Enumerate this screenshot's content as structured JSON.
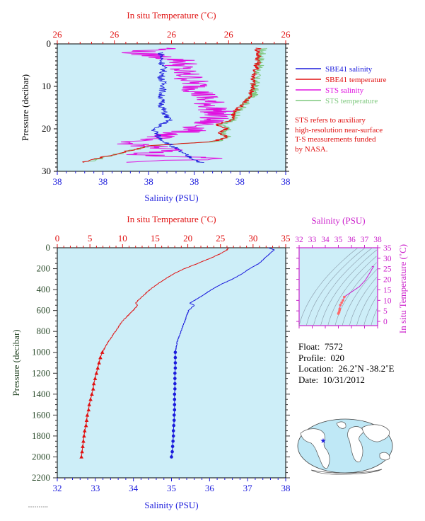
{
  "colors": {
    "plot_bg": "#cdeef8",
    "salinity": "#1a1adc",
    "temperature": "#e01010",
    "sts_salinity": "#e010e0",
    "sts_temperature": "#7ec87e",
    "ts_axis": "#cc22cc",
    "axis_dark": "#333333",
    "green_label": "#2a4a2a"
  },
  "top_panel": {
    "top_axis_title": "In situ Temperature (˚C)",
    "top_ticks": [
      "26",
      "26",
      "26",
      "26",
      "26"
    ],
    "bottom_axis_title": "Salinity (PSU)",
    "bottom_ticks": [
      "38",
      "38",
      "38",
      "38",
      "38",
      "38"
    ],
    "left_axis_title": "Pressure (decibar)",
    "left_ticks": [
      "0",
      "10",
      "20",
      "30"
    ],
    "legend": [
      {
        "label": "SBE41 salinity",
        "color": "#1a1adc"
      },
      {
        "label": "SBE41 temperature",
        "color": "#e01010"
      },
      {
        "label": "STS salinity",
        "color": "#e010e0"
      },
      {
        "label": "STS temperature",
        "color": "#7ec87e"
      }
    ],
    "note_lines": [
      "STS refers to auxiliary",
      "high-resolution near-surface",
      "T-S measurements funded",
      "by NASA."
    ]
  },
  "main_panel": {
    "top_axis_title": "In situ Temperature (˚C)",
    "top_ticks": [
      "0",
      "5",
      "10",
      "15",
      "20",
      "25",
      "30",
      "35"
    ],
    "bottom_axis_title": "Salinity (PSU)",
    "bottom_ticks": [
      "32",
      "33",
      "34",
      "35",
      "36",
      "37",
      "38"
    ],
    "left_axis_title": "Pressure (decibar)",
    "left_ticks": [
      "0",
      "200",
      "400",
      "600",
      "800",
      "1000",
      "1200",
      "1400",
      "1600",
      "1800",
      "2000",
      "2200"
    ]
  },
  "ts_panel": {
    "top_axis_title": "Salinity (PSU)",
    "top_ticks": [
      "32",
      "33",
      "34",
      "35",
      "36",
      "37",
      "38"
    ],
    "right_axis_title": "In situ Temperature (˚C)",
    "right_ticks": [
      "0",
      "5",
      "10",
      "15",
      "20",
      "25",
      "30",
      "35"
    ]
  },
  "float_info": {
    "float_label": "Float:",
    "float_value": "7572",
    "profile_label": "Profile:",
    "profile_value": "020",
    "location_label": "Location:",
    "location_value": "26.2˚N  -38.2˚E",
    "date_label": "Date:",
    "date_value": "10/31/2012"
  },
  "chart_data": [
    {
      "type": "line",
      "panel": "near-surface (top)",
      "xlabel": "Salinity (PSU)",
      "x2label": "In situ Temperature (˚C)",
      "ylabel": "Pressure (decibar)",
      "xlim": [
        37.5,
        38.4
      ],
      "x2lim": [
        25.6,
        26.6
      ],
      "ylim": [
        30,
        0
      ],
      "series": [
        {
          "name": "SBE41 salinity",
          "axis": "salinity",
          "pressure": [
            2,
            4,
            6,
            8,
            10,
            12,
            14,
            16,
            18,
            20,
            22,
            24,
            26,
            28
          ],
          "values": [
            37.91,
            37.91,
            37.92,
            37.91,
            37.92,
            37.91,
            37.91,
            37.92,
            37.94,
            37.88,
            37.9,
            37.95,
            38.0,
            38.07
          ]
        },
        {
          "name": "SBE41 temperature",
          "axis": "temperature",
          "pressure": [
            1,
            4,
            8,
            12,
            16,
            18,
            19,
            20,
            21,
            22,
            23,
            24,
            26,
            28
          ],
          "values": [
            26.48,
            26.48,
            26.46,
            26.45,
            26.38,
            26.36,
            26.3,
            26.34,
            26.31,
            26.34,
            26.28,
            26.0,
            25.85,
            25.7
          ]
        },
        {
          "name": "STS salinity",
          "axis": "salinity",
          "pressure": [
            1,
            2,
            4,
            6,
            8,
            10,
            12,
            14,
            16,
            18,
            20,
            22,
            23,
            24,
            25,
            26,
            27,
            28
          ],
          "values": [
            37.95,
            37.8,
            38.0,
            37.98,
            38.02,
            38.05,
            38.07,
            38.1,
            38.13,
            38.1,
            38.05,
            37.9,
            37.75,
            37.85,
            37.95,
            37.8,
            38.15,
            37.75
          ]
        },
        {
          "name": "STS temperature",
          "axis": "temperature",
          "pressure": [
            1,
            4,
            8,
            12,
            16,
            18,
            19,
            20,
            21,
            22,
            23,
            24,
            26,
            28
          ],
          "values": [
            26.5,
            26.49,
            26.47,
            26.46,
            26.39,
            26.37,
            26.31,
            26.35,
            26.32,
            26.35,
            26.29,
            26.01,
            25.86,
            25.71
          ]
        }
      ],
      "legend": "right"
    },
    {
      "type": "line",
      "panel": "full profile",
      "xlabel": "Salinity (PSU)",
      "x2label": "In situ Temperature (˚C)",
      "ylabel": "Pressure (decibar)",
      "xlim": [
        32,
        38
      ],
      "x2lim": [
        0,
        35
      ],
      "ylim": [
        2200,
        0
      ],
      "series": [
        {
          "name": "salinity",
          "axis": "salinity",
          "marker": "circle",
          "pressure": [
            0,
            20,
            50,
            100,
            150,
            200,
            250,
            300,
            350,
            400,
            450,
            500,
            530,
            550,
            600,
            650,
            700,
            800,
            900,
            1000,
            1050,
            1100,
            1150,
            1200,
            1250,
            1300,
            1350,
            1400,
            1450,
            1500,
            1550,
            1600,
            1650,
            1700,
            1750,
            1800,
            1850,
            1900,
            1950,
            2000
          ],
          "values": [
            37.55,
            37.7,
            37.6,
            37.45,
            37.3,
            37.05,
            36.85,
            36.6,
            36.3,
            36.05,
            35.85,
            35.62,
            35.48,
            35.6,
            35.45,
            35.4,
            35.35,
            35.25,
            35.15,
            35.1,
            35.1,
            35.1,
            35.1,
            35.09,
            35.09,
            35.09,
            35.09,
            35.08,
            35.08,
            35.08,
            35.08,
            35.07,
            35.07,
            35.06,
            35.05,
            35.05,
            35.04,
            35.03,
            35.02,
            35.0
          ]
        },
        {
          "name": "temperature",
          "axis": "temperature",
          "marker": "triangle",
          "pressure": [
            0,
            20,
            50,
            100,
            150,
            200,
            250,
            300,
            350,
            400,
            450,
            500,
            530,
            550,
            600,
            650,
            700,
            800,
            900,
            1000,
            1050,
            1100,
            1150,
            1200,
            1250,
            1300,
            1350,
            1400,
            1450,
            1500,
            1550,
            1600,
            1650,
            1700,
            1750,
            1800,
            1850,
            1900,
            1950,
            2000
          ],
          "values": [
            26.2,
            26.0,
            25.2,
            23.5,
            21.5,
            19.5,
            17.8,
            16.5,
            15.3,
            14.2,
            13.3,
            12.4,
            12.0,
            12.3,
            11.6,
            10.8,
            10.0,
            8.9,
            7.8,
            6.9,
            6.6,
            6.4,
            6.2,
            6.0,
            5.8,
            5.6,
            5.5,
            5.3,
            5.1,
            4.9,
            4.8,
            4.6,
            4.5,
            4.4,
            4.2,
            4.1,
            4.0,
            3.9,
            3.8,
            3.7
          ]
        }
      ]
    },
    {
      "type": "line",
      "panel": "T-S diagram",
      "xlabel": "Salinity (PSU)",
      "ylabel": "In situ Temperature (˚C)",
      "xlim": [
        32,
        38
      ],
      "ylim": [
        -2,
        35
      ],
      "series": [
        {
          "salinity": [
            35.0,
            35.03,
            35.06,
            35.09,
            35.1,
            35.15,
            35.25,
            35.35,
            35.45,
            35.62,
            36.05,
            36.6,
            37.05,
            37.45,
            37.6,
            37.7,
            37.55
          ],
          "temperature": [
            3.7,
            4.1,
            4.5,
            5.3,
            6.0,
            7.8,
            8.9,
            10.0,
            11.6,
            12.4,
            14.2,
            16.5,
            19.5,
            23.5,
            25.2,
            26.0,
            26.2
          ]
        }
      ]
    }
  ]
}
